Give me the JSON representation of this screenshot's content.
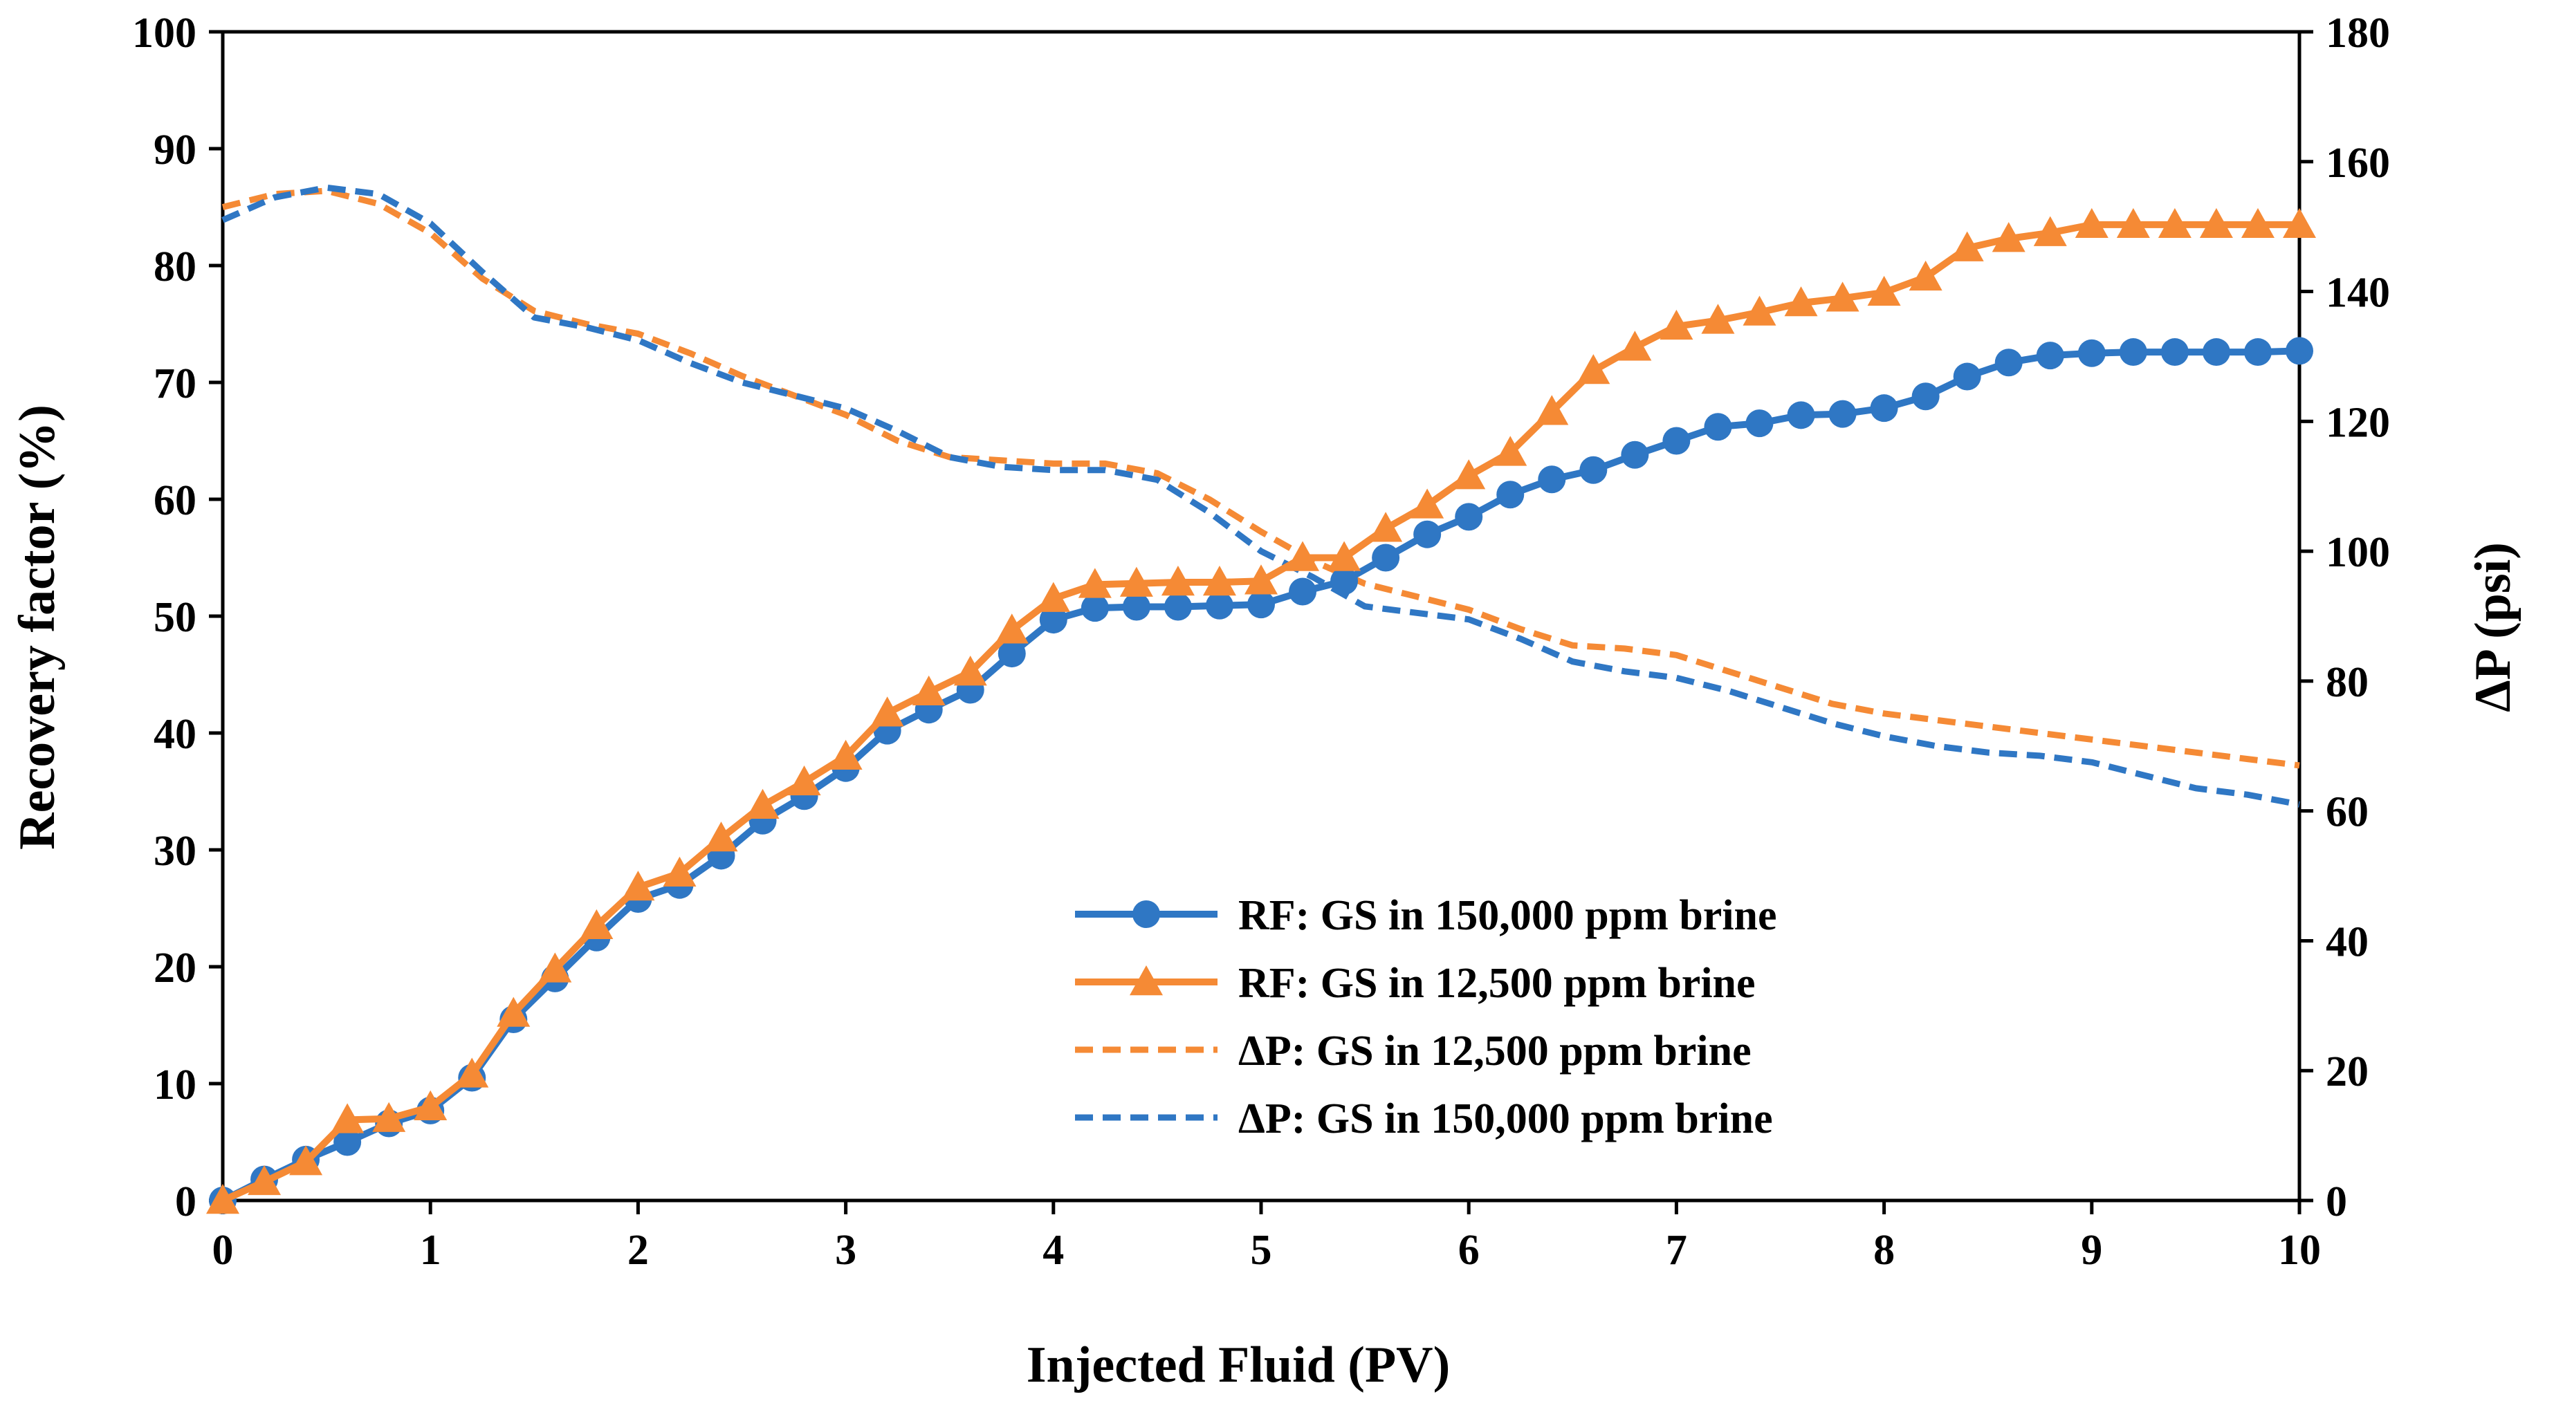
{
  "chart_data": {
    "type": "line",
    "title": "",
    "xlabel": "Injected Fluid (PV)",
    "ylabel": "Recovery factor (%)",
    "y2label": "ΔP (psi)",
    "xlim": [
      0,
      10
    ],
    "ylim": [
      0,
      100
    ],
    "y2lim": [
      0,
      180
    ],
    "x_ticks": [
      0,
      1,
      2,
      3,
      4,
      5,
      6,
      7,
      8,
      9,
      10
    ],
    "y_ticks": [
      0,
      10,
      20,
      30,
      40,
      50,
      60,
      70,
      80,
      90,
      100
    ],
    "y2_ticks": [
      0,
      20,
      40,
      60,
      80,
      100,
      120,
      140,
      160,
      180
    ],
    "grid": false,
    "legend_position": "center-bottom",
    "series": [
      {
        "name": "RF: GS in 150,000 ppm brine",
        "axis": "left",
        "style": "solid",
        "marker": "circle",
        "color": "#2f77c4",
        "x": [
          0,
          0.2,
          0.4,
          0.6,
          0.8,
          1.0,
          1.2,
          1.4,
          1.6,
          1.8,
          2.0,
          2.2,
          2.4,
          2.6,
          2.8,
          3.0,
          3.2,
          3.4,
          3.6,
          3.8,
          4.0,
          4.2,
          4.4,
          4.6,
          4.8,
          5.0,
          5.2,
          5.4,
          5.6,
          5.8,
          6.0,
          6.2,
          6.4,
          6.6,
          6.8,
          7.0,
          7.2,
          7.4,
          7.6,
          7.8,
          8.0,
          8.2,
          8.4,
          8.6,
          8.8,
          9.0,
          9.2,
          9.4,
          9.6,
          9.8,
          10.0
        ],
        "y": [
          0,
          1.8,
          3.5,
          5.0,
          6.6,
          7.7,
          10.5,
          15.5,
          19.0,
          22.5,
          25.8,
          27.0,
          29.5,
          32.5,
          34.6,
          37.0,
          40.2,
          42.0,
          43.7,
          46.8,
          49.7,
          50.7,
          50.8,
          50.8,
          50.9,
          51.0,
          52.1,
          53.0,
          55.0,
          57.0,
          58.5,
          60.4,
          61.7,
          62.5,
          63.8,
          65.0,
          66.2,
          66.5,
          67.2,
          67.3,
          67.8,
          68.8,
          70.5,
          71.7,
          72.3,
          72.5,
          72.6,
          72.6,
          72.6,
          72.6,
          72.7
        ]
      },
      {
        "name": "RF: GS in 12,500 ppm brine",
        "axis": "left",
        "style": "solid",
        "marker": "triangle",
        "color": "#f58a35",
        "x": [
          0,
          0.2,
          0.4,
          0.6,
          0.8,
          1.0,
          1.2,
          1.4,
          1.6,
          1.8,
          2.0,
          2.2,
          2.4,
          2.6,
          2.8,
          3.0,
          3.2,
          3.4,
          3.6,
          3.8,
          4.0,
          4.2,
          4.4,
          4.6,
          4.8,
          5.0,
          5.2,
          5.4,
          5.6,
          5.8,
          6.0,
          6.2,
          6.4,
          6.6,
          6.8,
          7.0,
          7.2,
          7.4,
          7.6,
          7.8,
          8.0,
          8.2,
          8.4,
          8.6,
          8.8,
          9.0,
          9.2,
          9.4,
          9.6,
          9.8,
          10.0
        ],
        "y": [
          0,
          1.6,
          3.3,
          6.9,
          7.0,
          8.0,
          10.8,
          16.0,
          19.8,
          23.5,
          26.8,
          28.0,
          31.0,
          33.8,
          35.8,
          38.0,
          41.7,
          43.5,
          45.2,
          48.8,
          51.5,
          52.7,
          52.8,
          52.9,
          52.9,
          53.0,
          55.0,
          55.0,
          57.5,
          59.5,
          62.0,
          64.0,
          67.5,
          71.0,
          73.0,
          74.8,
          75.3,
          76.0,
          76.8,
          77.2,
          77.7,
          79.0,
          81.5,
          82.3,
          82.8,
          83.5,
          83.5,
          83.5,
          83.5,
          83.5,
          83.5
        ]
      },
      {
        "name": "ΔP: GS in 12,500 ppm brine",
        "axis": "right",
        "style": "dashed",
        "marker": "none",
        "color": "#f58a35",
        "x": [
          0,
          0.25,
          0.5,
          0.75,
          1.0,
          1.25,
          1.5,
          1.75,
          2.0,
          2.25,
          2.5,
          2.75,
          3.0,
          3.25,
          3.5,
          3.75,
          4.0,
          4.25,
          4.5,
          4.75,
          5.0,
          5.25,
          5.5,
          5.75,
          6.0,
          6.25,
          6.5,
          6.75,
          7.0,
          7.25,
          7.5,
          7.75,
          8.0,
          8.25,
          8.5,
          8.75,
          9.0,
          9.25,
          9.5,
          9.75,
          10.0
        ],
        "y": [
          153.0,
          155.0,
          155.5,
          153.5,
          149.0,
          142.0,
          137.0,
          135.0,
          133.5,
          130.5,
          127.0,
          124.0,
          121.0,
          117.0,
          114.5,
          114.0,
          113.5,
          113.5,
          112.0,
          108.0,
          103.0,
          98.5,
          95.0,
          93.0,
          91.0,
          88.0,
          85.5,
          85.0,
          84.0,
          81.5,
          79.0,
          76.5,
          75.0,
          74.0,
          73.0,
          72.0,
          71.0,
          70.0,
          69.0,
          68.0,
          67.0
        ]
      },
      {
        "name": "ΔP: GS in 150,000 ppm brine",
        "axis": "right",
        "style": "dashed",
        "marker": "none",
        "color": "#2f77c4",
        "x": [
          0,
          0.25,
          0.5,
          0.75,
          1.0,
          1.25,
          1.5,
          1.75,
          2.0,
          2.25,
          2.5,
          2.75,
          3.0,
          3.25,
          3.5,
          3.75,
          4.0,
          4.25,
          4.5,
          4.75,
          5.0,
          5.25,
          5.5,
          5.75,
          6.0,
          6.25,
          6.5,
          6.75,
          7.0,
          7.25,
          7.5,
          7.75,
          8.0,
          8.25,
          8.5,
          8.75,
          9.0,
          9.25,
          9.5,
          9.75,
          10.0
        ],
        "y": [
          151.0,
          154.5,
          156.0,
          155.0,
          150.5,
          143.0,
          136.0,
          134.5,
          132.5,
          129.0,
          126.0,
          124.0,
          122.0,
          118.5,
          114.5,
          113.0,
          112.5,
          112.5,
          111.0,
          106.0,
          100.0,
          96.0,
          91.5,
          90.5,
          89.5,
          86.5,
          83.0,
          81.5,
          80.5,
          78.5,
          76.0,
          73.5,
          71.5,
          70.0,
          69.0,
          68.5,
          67.5,
          65.5,
          63.5,
          62.5,
          61.0
        ]
      }
    ]
  }
}
